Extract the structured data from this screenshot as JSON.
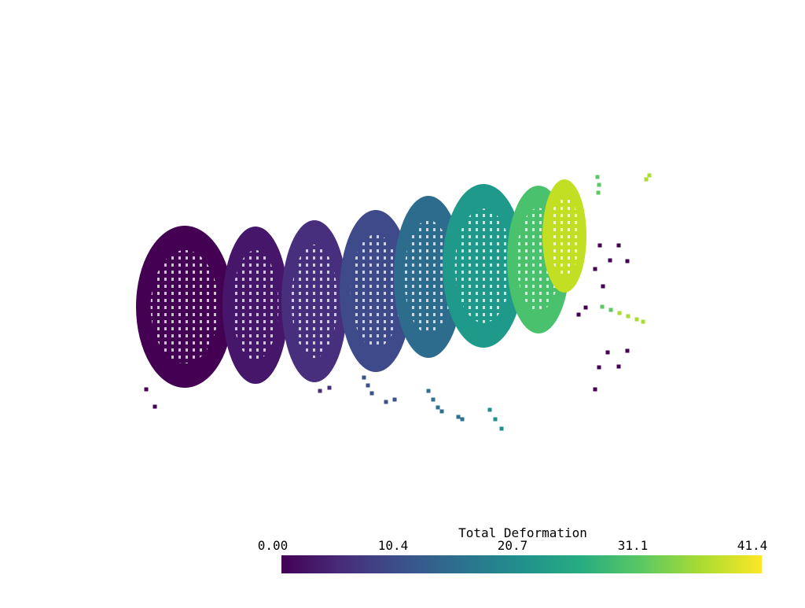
{
  "colorbar": {
    "title": "Total Deformation",
    "ticks": [
      "0.00",
      "10.4",
      "20.7",
      "31.1",
      "41.4"
    ],
    "min": 0.0,
    "max": 41.4,
    "colormap": "viridis",
    "colors": [
      "#440154",
      "#472c7a",
      "#3b518b",
      "#2c718e",
      "#21908d",
      "#27ad81",
      "#5cc863",
      "#aadc32",
      "#fde725"
    ]
  },
  "background": "#ffffff"
}
